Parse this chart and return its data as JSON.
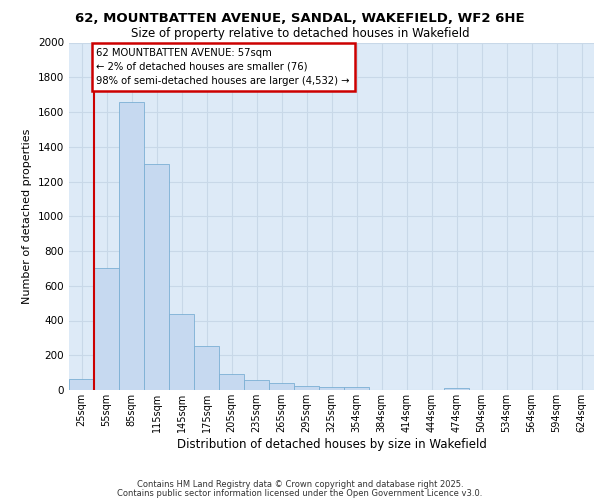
{
  "title_line1": "62, MOUNTBATTEN AVENUE, SANDAL, WAKEFIELD, WF2 6HE",
  "title_line2": "Size of property relative to detached houses in Wakefield",
  "xlabel": "Distribution of detached houses by size in Wakefield",
  "ylabel": "Number of detached properties",
  "categories": [
    "25sqm",
    "55sqm",
    "85sqm",
    "115sqm",
    "145sqm",
    "175sqm",
    "205sqm",
    "235sqm",
    "265sqm",
    "295sqm",
    "325sqm",
    "354sqm",
    "384sqm",
    "414sqm",
    "444sqm",
    "474sqm",
    "504sqm",
    "534sqm",
    "564sqm",
    "594sqm",
    "624sqm"
  ],
  "values": [
    65,
    700,
    1660,
    1300,
    440,
    255,
    90,
    55,
    40,
    25,
    20,
    15,
    0,
    0,
    0,
    10,
    0,
    0,
    0,
    0,
    0
  ],
  "bar_color": "#c6d9f0",
  "bar_edge_color": "#7bafd4",
  "ylim": [
    0,
    2000
  ],
  "yticks": [
    0,
    200,
    400,
    600,
    800,
    1000,
    1200,
    1400,
    1600,
    1800,
    2000
  ],
  "annotation_title": "62 MOUNTBATTEN AVENUE: 57sqm",
  "annotation_line2": "← 2% of detached houses are smaller (76)",
  "annotation_line3": "98% of semi-detached houses are larger (4,532) →",
  "annotation_box_color": "#cc0000",
  "grid_color": "#c8d8e8",
  "background_color": "#ddeaf7",
  "footer1": "Contains HM Land Registry data © Crown copyright and database right 2025.",
  "footer2": "Contains public sector information licensed under the Open Government Licence v3.0."
}
